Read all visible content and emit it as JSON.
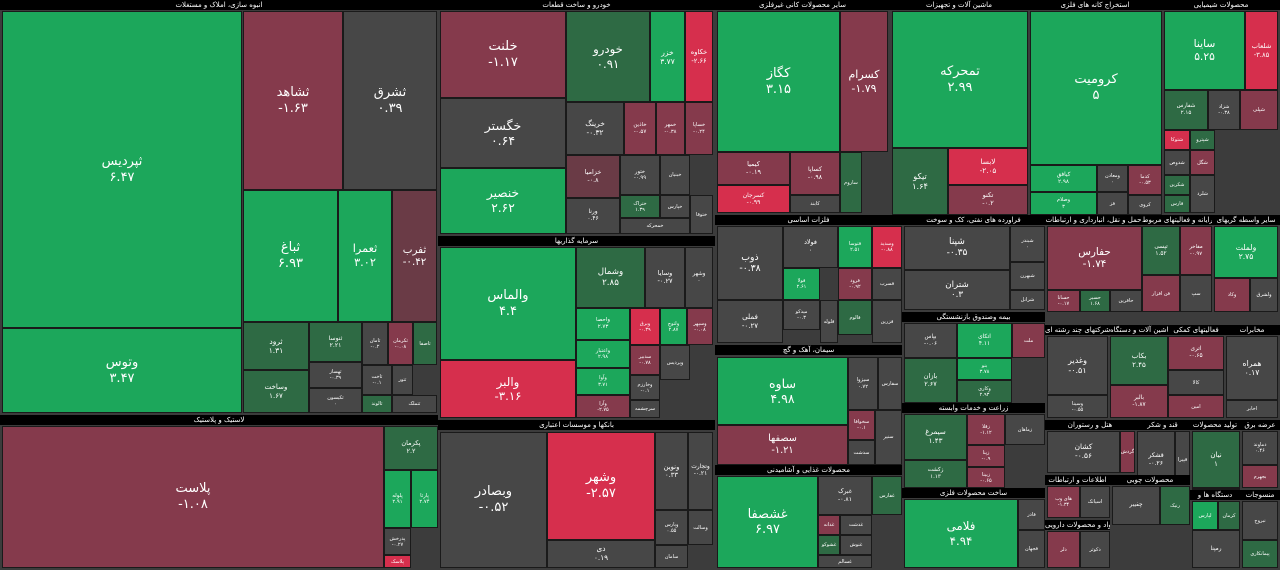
{
  "sectors": [
    {
      "title": "انبوه سازی، املاک و مستغلات",
      "tiles": [
        {
          "name": "ثپردیس",
          "change": "۶.۴۷"
        },
        {
          "name": "وتوس",
          "change": "۳.۴۷"
        },
        {
          "name": "ثشاهد",
          "change": "-۱.۶۳"
        },
        {
          "name": "ثشرق",
          "change": "۰.۳۹"
        },
        {
          "name": "ثباغ",
          "change": "۶.۹۳"
        },
        {
          "name": "ثعمرا",
          "change": "۳.۰۲"
        },
        {
          "name": "ثفرب",
          "change": "-۰.۴۲"
        },
        {
          "name": "ثرود",
          "change": "۱.۳۱"
        },
        {
          "name": "وساخت",
          "change": "۱.۶۷"
        },
        {
          "name": "ثنوسا",
          "change": "۲.۲۱"
        },
        {
          "name": "ثهساز",
          "change": "-۰.۳۹"
        },
        {
          "name": "ثکیسون",
          "change": "۰"
        },
        {
          "name": "ثامان",
          "change": "-۰.۲"
        },
        {
          "name": "ثکرمان",
          "change": "-۰.۰۸"
        },
        {
          "name": "ثاصفا"
        },
        {
          "name": "ثاخت",
          "change": "-۰.۱"
        },
        {
          "name": "ثتور"
        },
        {
          "name": "ثالوند"
        },
        {
          "name": "ثتملک"
        }
      ]
    },
    {
      "title": "لاستیک و پلاستیک",
      "tiles": [
        {
          "name": "پلاست",
          "change": "-۱.۰۸"
        },
        {
          "name": "پکرمان",
          "change": "۲.۲"
        },
        {
          "name": "پلوله",
          "change": "۲.۹۱"
        },
        {
          "name": "پارتا",
          "change": "۲.۷۴"
        },
        {
          "name": "پدرخش",
          "change": "-۰.۲۷"
        },
        {
          "name": "پلاسک"
        }
      ]
    },
    {
      "title": "خودرو و ساخت قطعات",
      "tiles": [
        {
          "name": "خلنت",
          "change": "-۱.۱۷"
        },
        {
          "name": "خگستر",
          "change": "۰.۶۴"
        },
        {
          "name": "خنصیر",
          "change": "۲.۶۲"
        },
        {
          "name": "خودرو",
          "change": "۰.۹۱"
        },
        {
          "name": "خزر",
          "change": "۳.۷۷"
        },
        {
          "name": "خکاوه",
          "change": "-۲.۶۶"
        },
        {
          "name": "خرینگ",
          "change": "-۰.۳۲"
        },
        {
          "name": "خاذین",
          "change": "-۰.۵۷"
        },
        {
          "name": "خمهر",
          "change": "-۰.۳۸"
        },
        {
          "name": "خساپا",
          "change": "-۰.۲۴"
        },
        {
          "name": "خزامیا",
          "change": "-۰.۸"
        },
        {
          "name": "ورنا",
          "change": "۰.۴۶"
        },
        {
          "name": "ختور",
          "change": "-۰.۹۹"
        },
        {
          "name": "خبنیان"
        },
        {
          "name": "ختراک",
          "change": "۱.۳۹"
        },
        {
          "name": "خمحرکه"
        },
        {
          "name": "خپارس"
        },
        {
          "name": "ختوقا"
        }
      ]
    },
    {
      "title": "سرمایه گذاریها",
      "tiles": [
        {
          "name": "والماس",
          "change": "۴.۴"
        },
        {
          "name": "والبر",
          "change": "-۳.۱۶"
        },
        {
          "name": "وشمال",
          "change": "۲.۸۵"
        },
        {
          "name": "وسایا",
          "change": "-۰.۲۷"
        },
        {
          "name": "وشهر",
          "change": "۰"
        },
        {
          "name": "واحصا",
          "change": "۲.۷۳"
        },
        {
          "name": "واعتبار",
          "change": "۲.۹۸"
        },
        {
          "name": "وآوا",
          "change": "۳.۷۱"
        },
        {
          "name": "وآرا",
          "change": "-۲.۷۵"
        },
        {
          "name": "وبرق",
          "change": "-۰.۳۹"
        },
        {
          "name": "ولتوچ",
          "change": "۲.۸۷"
        },
        {
          "name": "وسپهر",
          "change": "-۰.۰۸"
        },
        {
          "name": "سدبیر",
          "change": "-۰.۷۸"
        },
        {
          "name": "وخارزم",
          "change": "-۰.۱"
        },
        {
          "name": "وپردیس"
        },
        {
          "name": "سرچشمه"
        }
      ]
    },
    {
      "title": "بانکها و موسسات اعتباری",
      "tiles": [
        {
          "name": "وبصادر",
          "change": "-۰.۵۲"
        },
        {
          "name": "وتجارت",
          "change": "-۰.۲۱"
        },
        {
          "name": "ونوین",
          "change": "۰.۳۳"
        },
        {
          "name": "وشهر",
          "change": "-۲.۵۷"
        },
        {
          "name": "دی",
          "change": "۰.۱۹"
        },
        {
          "name": "وپارس",
          "change": "۰.۵۵"
        },
        {
          "name": "سامان"
        },
        {
          "name": "وسالت"
        }
      ]
    },
    {
      "title": "سایر محصولات کانی غیرفلزی",
      "tiles": [
        {
          "name": "کگاز",
          "change": "۳.۱۵"
        },
        {
          "name": "کسرام",
          "change": "-۱.۷۹"
        },
        {
          "name": "کیمیا",
          "change": "-۰.۱۹"
        },
        {
          "name": "کسرجان",
          "change": "-۰.۹۹"
        },
        {
          "name": "کساپا",
          "change": "-۰.۹۸"
        },
        {
          "name": "کابند"
        },
        {
          "name": "ساروم"
        }
      ]
    },
    {
      "title": "فلزات اساسی",
      "tiles": [
        {
          "name": "ذوب",
          "change": "-۰.۳۸"
        },
        {
          "name": "فملی",
          "change": "-۰.۲۷"
        },
        {
          "name": "فولاد",
          "change": "۰"
        },
        {
          "name": "فولا",
          "change": "۲.۶۱"
        },
        {
          "name": "میدکو",
          "change": "-۰.۳"
        },
        {
          "name": "فلوله"
        },
        {
          "name": "فتوسا",
          "change": "۲.۵۱"
        },
        {
          "name": "وسدید",
          "change": "-۰.۸۸"
        },
        {
          "name": "فرود",
          "change": "-۰.۹۲"
        },
        {
          "name": "فسرب"
        },
        {
          "name": "فالوم"
        },
        {
          "name": "فزرین"
        }
      ]
    },
    {
      "title": "سیمان، آهک و گچ",
      "tiles": [
        {
          "name": "ساوه",
          "change": "۴.۹۸"
        },
        {
          "name": "سصفها",
          "change": "-۱.۲۱"
        },
        {
          "name": "سیزوا",
          "change": "۰.۷۲"
        },
        {
          "name": "سفارس"
        },
        {
          "name": "سخوافا",
          "change": "-۰.۱"
        },
        {
          "name": "سدشت"
        },
        {
          "name": "سنیر"
        }
      ]
    },
    {
      "title": "محصولات غذایی و آشامیدنی",
      "tiles": [
        {
          "name": "غشصفا",
          "change": "۶.۹۷"
        },
        {
          "name": "غبرک",
          "change": "-۰.۸۱"
        },
        {
          "name": "غفارس"
        },
        {
          "name": "غدانه"
        },
        {
          "name": "غدشت"
        },
        {
          "name": "غشوکو"
        },
        {
          "name": "غنوش"
        },
        {
          "name": "غسالم"
        }
      ]
    },
    {
      "title": "ماشین آلات و تجهیزات",
      "tiles": [
        {
          "name": "تمحرکه",
          "change": "۲.۹۹"
        },
        {
          "name": "تیکو",
          "change": "۱.۶۴"
        },
        {
          "name": "لابسا",
          "change": "-۲.۰۵"
        },
        {
          "name": "تکنو",
          "change": "-۰.۲"
        }
      ]
    },
    {
      "title": "استخراج کانه های فلزی",
      "tiles": [
        {
          "name": "کرومیت",
          "change": "۵"
        },
        {
          "name": "کیافق",
          "change": "۲.۹۸"
        },
        {
          "name": "وصلام",
          "change": "۳"
        },
        {
          "name": "ومعادن",
          "change": "۰"
        },
        {
          "name": "فز"
        },
        {
          "name": "کدما",
          "change": "-۰.۵۳"
        },
        {
          "name": "کروی"
        }
      ]
    },
    {
      "title": "محصولات شیمیایی",
      "tiles": [
        {
          "name": "ساینا",
          "change": "۵.۲۵"
        },
        {
          "name": "شلعاب",
          "change": "-۳.۸۵"
        },
        {
          "name": "شفارس",
          "change": "۲.۱۵"
        },
        {
          "name": "شزاد",
          "change": "-۰.۳۸"
        },
        {
          "name": "شپلی"
        },
        {
          "name": "شتوکا"
        },
        {
          "name": "شپترو"
        },
        {
          "name": "شدوص"
        },
        {
          "name": "شکربن"
        },
        {
          "name": "شگل"
        },
        {
          "name": "فارس"
        },
        {
          "name": "شلرد"
        }
      ]
    },
    {
      "title": "فراورده های نفتی، کک و سوخت",
      "tiles": [
        {
          "name": "شپنا",
          "change": "-۰.۳۵"
        },
        {
          "name": "شتران",
          "change": "۰.۳"
        },
        {
          "name": "شبندر",
          "change": "۰"
        },
        {
          "name": "شبهرن"
        },
        {
          "name": "شرانل"
        }
      ]
    },
    {
      "title": "بیمه وصندوق بازنشستگی",
      "tiles": [
        {
          "name": "بپاس",
          "change": "-۰.۰۶"
        },
        {
          "name": "اتکای",
          "change": "۴.۱۱"
        },
        {
          "name": "ملت"
        },
        {
          "name": "بازان",
          "change": "۲.۶۷"
        },
        {
          "name": "بنو",
          "change": "۳.۷۸"
        },
        {
          "name": "وکاری",
          "change": "۲.۹۳"
        }
      ]
    },
    {
      "title": "زراعت و خدمات وابسته",
      "tiles": [
        {
          "name": "سیمرغ",
          "change": "۱.۴۳"
        },
        {
          "name": "زکشت",
          "change": "۱.۱۳"
        },
        {
          "name": "زقلا",
          "change": "-۱.۱۲"
        },
        {
          "name": "زماهان"
        },
        {
          "name": "زپنا",
          "change": "-۰.۹"
        },
        {
          "name": "زبینا",
          "change": "-۰.۶۵"
        }
      ]
    },
    {
      "title": "ساخت محصولات فلزی",
      "tiles": [
        {
          "name": "فلامی",
          "change": "۴.۹۴"
        },
        {
          "name": "فاذر"
        },
        {
          "name": "فجهان"
        }
      ]
    },
    {
      "title": "حمل و نقل، انبارداری و ارتباطات",
      "tiles": [
        {
          "name": "حفارس",
          "change": "-۱.۷۴"
        },
        {
          "name": "حسانا",
          "change": "-۰.۱۷"
        },
        {
          "name": "حسیر",
          "change": "۱.۶۸"
        },
        {
          "name": "حافرین"
        }
      ]
    },
    {
      "title": "رایانه و فعالیتهای مربوط",
      "tiles": [
        {
          "name": "تپسی",
          "change": "۱.۵۲"
        },
        {
          "name": "مفاخر",
          "change": "-۰.۹۷"
        },
        {
          "name": "فن افزار"
        },
        {
          "name": "سپ"
        }
      ]
    },
    {
      "title": "سایر واسطه گریهای",
      "tiles": [
        {
          "name": "ولملت",
          "change": "۲.۷۵"
        },
        {
          "name": "وکاد"
        },
        {
          "name": "ولشرق"
        }
      ]
    },
    {
      "title": "شرکتهای چند رشته ای",
      "tiles": [
        {
          "name": "وغدیر",
          "change": "-۰.۵۱"
        },
        {
          "name": "وسینا",
          "change": "-۰.۵۵"
        }
      ]
    },
    {
      "title": "ماشین آلات و دستگاه",
      "tiles": [
        {
          "name": "بکاب",
          "change": "۲.۴۵"
        },
        {
          "name": "بالبر",
          "change": "-۱.۸۷"
        }
      ]
    },
    {
      "title": "فعالیتهای کمکی",
      "tiles": [
        {
          "name": "اتری",
          "change": "-۰.۶۵"
        },
        {
          "name": "کالا"
        },
        {
          "name": "امین"
        }
      ]
    },
    {
      "title": "مخابرات",
      "tiles": [
        {
          "name": "همراه",
          "change": "۰.۱۷"
        },
        {
          "name": "اخابر"
        }
      ]
    },
    {
      "title": "هتل و رستوران",
      "tiles": [
        {
          "name": "کشان",
          "change": "-۰.۵۶"
        },
        {
          "name": "گردش"
        }
      ]
    },
    {
      "title": "قند و شکر",
      "tiles": [
        {
          "name": "قشکر",
          "change": "-۰.۲۶"
        },
        {
          "name": "قپیرا"
        }
      ]
    },
    {
      "title": "تولید محصولات",
      "tiles": [
        {
          "name": "نیان",
          "change": "۱"
        },
        {
          "name": "ثمسکن"
        }
      ]
    },
    {
      "title": "عرضه برق",
      "tiles": [
        {
          "name": "دماوند",
          "change": "۰.۴۶"
        },
        {
          "name": "بجهرم"
        }
      ]
    },
    {
      "title": "اطلاعات و ارتباطات",
      "tiles": [
        {
          "name": "های وب",
          "change": "-۱.۳۴"
        },
        {
          "name": "اسیاتک"
        },
        {
          "name": "اپرداز"
        }
      ]
    },
    {
      "title": "مواد و محصولات دارویی",
      "tiles": [
        {
          "name": "دلر"
        },
        {
          "name": "دکوثر"
        }
      ]
    },
    {
      "title": "محصولات چوبی",
      "tiles": [
        {
          "name": "چفیبر"
        },
        {
          "name": "رنیک"
        }
      ]
    },
    {
      "title": "دستگاه ها و",
      "tiles": [
        {
          "name": "لپارس"
        },
        {
          "name": "کرمان"
        },
        {
          "name": "رمپنا"
        }
      ]
    },
    {
      "title": "منسوجات",
      "tiles": [
        {
          "name": "نبروج"
        },
        {
          "name": "پیمانکاری"
        }
      ]
    }
  ]
}
